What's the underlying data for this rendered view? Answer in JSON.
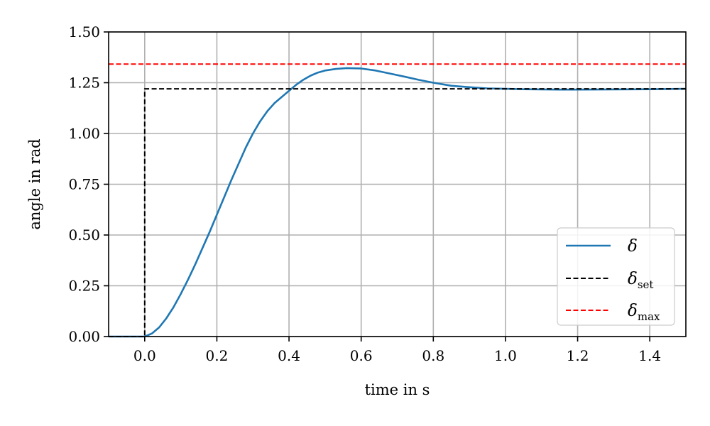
{
  "chart_data": {
    "type": "line",
    "title": "",
    "xlabel": "time in s",
    "ylabel": "angle in rad",
    "xlim": [
      -0.1,
      1.5
    ],
    "ylim": [
      0.0,
      1.5
    ],
    "xticks": [
      0.0,
      0.2,
      0.4,
      0.6,
      0.8,
      1.0,
      1.2,
      1.4
    ],
    "xtick_labels": [
      "0.0",
      "0.2",
      "0.4",
      "0.6",
      "0.8",
      "1.0",
      "1.2",
      "1.4"
    ],
    "yticks": [
      0.0,
      0.25,
      0.5,
      0.75,
      1.0,
      1.25,
      1.5
    ],
    "ytick_labels": [
      "0.00",
      "0.25",
      "0.50",
      "0.75",
      "1.00",
      "1.25",
      "1.50"
    ],
    "grid": true,
    "legend_position": "lower-right",
    "series": [
      {
        "legend_symbol": "δ",
        "legend_subscript": "",
        "color": "#1f77b4",
        "style": "solid",
        "x": [
          -0.1,
          0.0,
          0.02,
          0.04,
          0.06,
          0.08,
          0.1,
          0.12,
          0.14,
          0.16,
          0.18,
          0.2,
          0.22,
          0.24,
          0.26,
          0.28,
          0.3,
          0.32,
          0.34,
          0.36,
          0.38,
          0.4,
          0.42,
          0.44,
          0.46,
          0.48,
          0.5,
          0.53,
          0.56,
          0.6,
          0.64,
          0.68,
          0.72,
          0.76,
          0.8,
          0.85,
          0.9,
          0.95,
          1.0,
          1.05,
          1.1,
          1.15,
          1.2,
          1.3,
          1.4,
          1.5
        ],
        "y": [
          0.0,
          0.0,
          0.015,
          0.045,
          0.09,
          0.145,
          0.21,
          0.28,
          0.355,
          0.435,
          0.515,
          0.6,
          0.685,
          0.77,
          0.85,
          0.93,
          1.0,
          1.06,
          1.11,
          1.15,
          1.18,
          1.21,
          1.24,
          1.265,
          1.285,
          1.3,
          1.31,
          1.318,
          1.322,
          1.32,
          1.31,
          1.295,
          1.28,
          1.264,
          1.25,
          1.235,
          1.228,
          1.222,
          1.22,
          1.218,
          1.217,
          1.216,
          1.216,
          1.217,
          1.218,
          1.22
        ]
      },
      {
        "legend_symbol": "δ",
        "legend_subscript": "set",
        "color": "#000000",
        "style": "dashed",
        "x": [
          -0.1,
          0.0,
          0.0,
          1.5
        ],
        "y": [
          0.0,
          0.0,
          1.22,
          1.22
        ]
      },
      {
        "legend_symbol": "δ",
        "legend_subscript": "max",
        "color": "#ff0000",
        "style": "dashed",
        "x": [
          -0.1,
          1.5
        ],
        "y": [
          1.342,
          1.342
        ]
      }
    ]
  }
}
